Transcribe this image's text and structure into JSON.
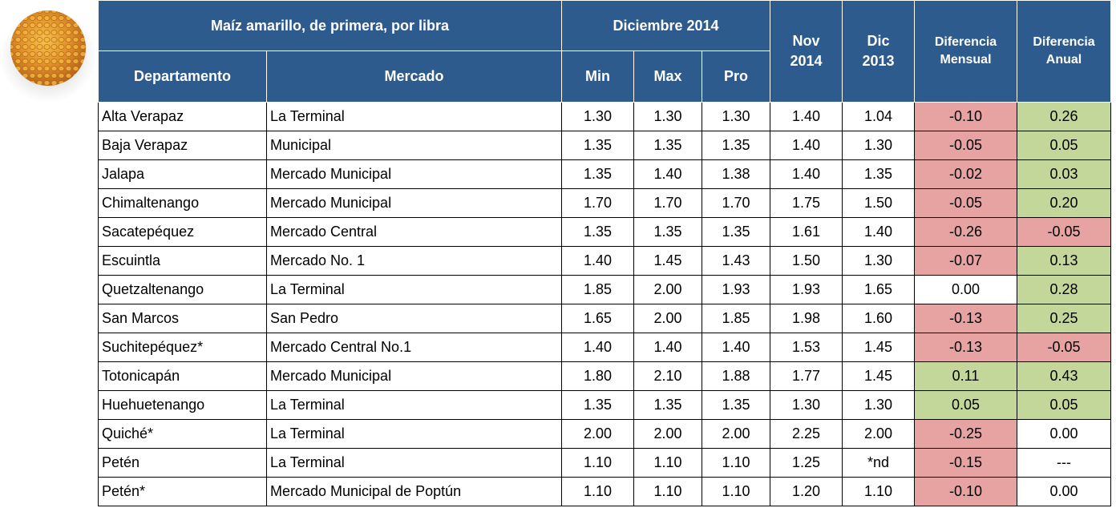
{
  "header": {
    "title": "Maíz amarillo, de primera, por libra",
    "period": "Diciembre 2014",
    "columns": [
      "Departamento",
      "Mercado",
      "Min",
      "Max",
      "Pro",
      "Nov 2014",
      "Dic 2013",
      "Diferencia Mensual",
      "Diferencia Anual"
    ]
  },
  "table": {
    "rows": [
      [
        "Alta Verapaz",
        "La Terminal",
        "1.30",
        "1.30",
        "1.30",
        "1.40",
        "1.04",
        "-0.10",
        "0.26"
      ],
      [
        "Baja Verapaz",
        "Municipal",
        "1.35",
        "1.35",
        "1.35",
        "1.40",
        "1.30",
        "-0.05",
        "0.05"
      ],
      [
        "Jalapa",
        "Mercado Municipal",
        "1.35",
        "1.40",
        "1.38",
        "1.40",
        "1.35",
        "-0.02",
        "0.03"
      ],
      [
        "Chimaltenango",
        "Mercado Municipal",
        "1.70",
        "1.70",
        "1.70",
        "1.75",
        "1.50",
        "-0.05",
        "0.20"
      ],
      [
        "Sacatepéquez",
        "Mercado Central",
        "1.35",
        "1.35",
        "1.35",
        "1.61",
        "1.40",
        "-0.26",
        "-0.05"
      ],
      [
        "Escuintla",
        "Mercado No. 1",
        "1.40",
        "1.45",
        "1.43",
        "1.50",
        "1.30",
        "-0.07",
        "0.13"
      ],
      [
        "Quetzaltenango",
        "La Terminal",
        "1.85",
        "2.00",
        "1.93",
        "1.93",
        "1.65",
        "0.00",
        "0.28"
      ],
      [
        "San Marcos",
        "San Pedro",
        "1.65",
        "2.00",
        "1.85",
        "1.98",
        "1.60",
        "-0.13",
        "0.25"
      ],
      [
        "Suchitepéquez*",
        "Mercado Central No.1",
        "1.40",
        "1.40",
        "1.40",
        "1.53",
        "1.45",
        "-0.13",
        "-0.05"
      ],
      [
        "Totonicapán",
        "Mercado Municipal",
        "1.80",
        "2.10",
        "1.88",
        "1.77",
        "1.45",
        "0.11",
        "0.43"
      ],
      [
        "Huehuetenango",
        "La Terminal",
        "1.35",
        "1.35",
        "1.35",
        "1.30",
        "1.30",
        "0.05",
        "0.05"
      ],
      [
        "Quiché*",
        "La Terminal",
        "2.00",
        "2.00",
        "2.00",
        "2.25",
        "2.00",
        "-0.25",
        "0.00"
      ],
      [
        "Petén",
        "La Terminal",
        "1.10",
        "1.10",
        "1.10",
        "1.25",
        "*nd",
        "-0.15",
        "---"
      ],
      [
        "Petén*",
        "Mercado Municipal de Poptún",
        "1.10",
        "1.10",
        "1.10",
        "1.20",
        "1.10",
        "-0.10",
        "0.00"
      ]
    ]
  },
  "colors": {
    "negative": "#e6a3a1",
    "positive": "#c4d79b"
  }
}
